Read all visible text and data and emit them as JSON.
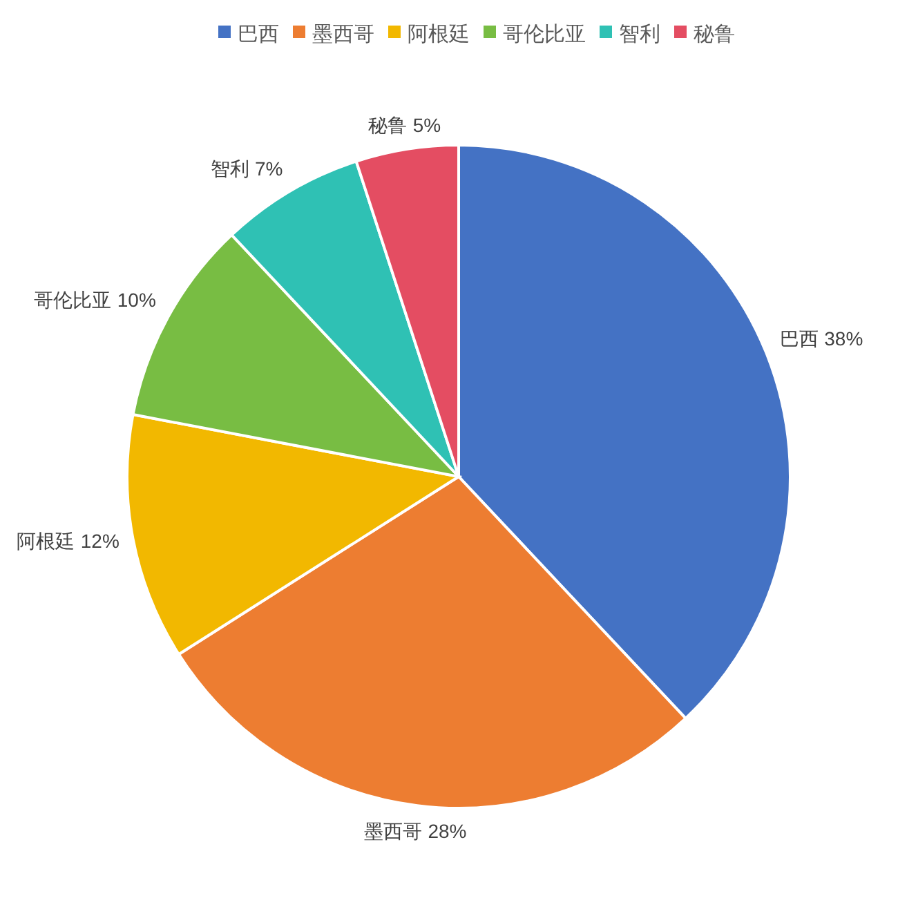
{
  "chart_data": {
    "type": "pie",
    "categories": [
      "巴西",
      "墨西哥",
      "阿根廷",
      "哥伦比亚",
      "智利",
      "秘鲁"
    ],
    "values": [
      38,
      28,
      12,
      10,
      7,
      5
    ],
    "value_labels": [
      "38%",
      "28%",
      "12%",
      "10%",
      "7%",
      "5%"
    ],
    "colors": [
      "#4472c4",
      "#ed7d31",
      "#f2b800",
      "#78bd43",
      "#2fc1b4",
      "#e44d62"
    ],
    "legend": "top"
  }
}
